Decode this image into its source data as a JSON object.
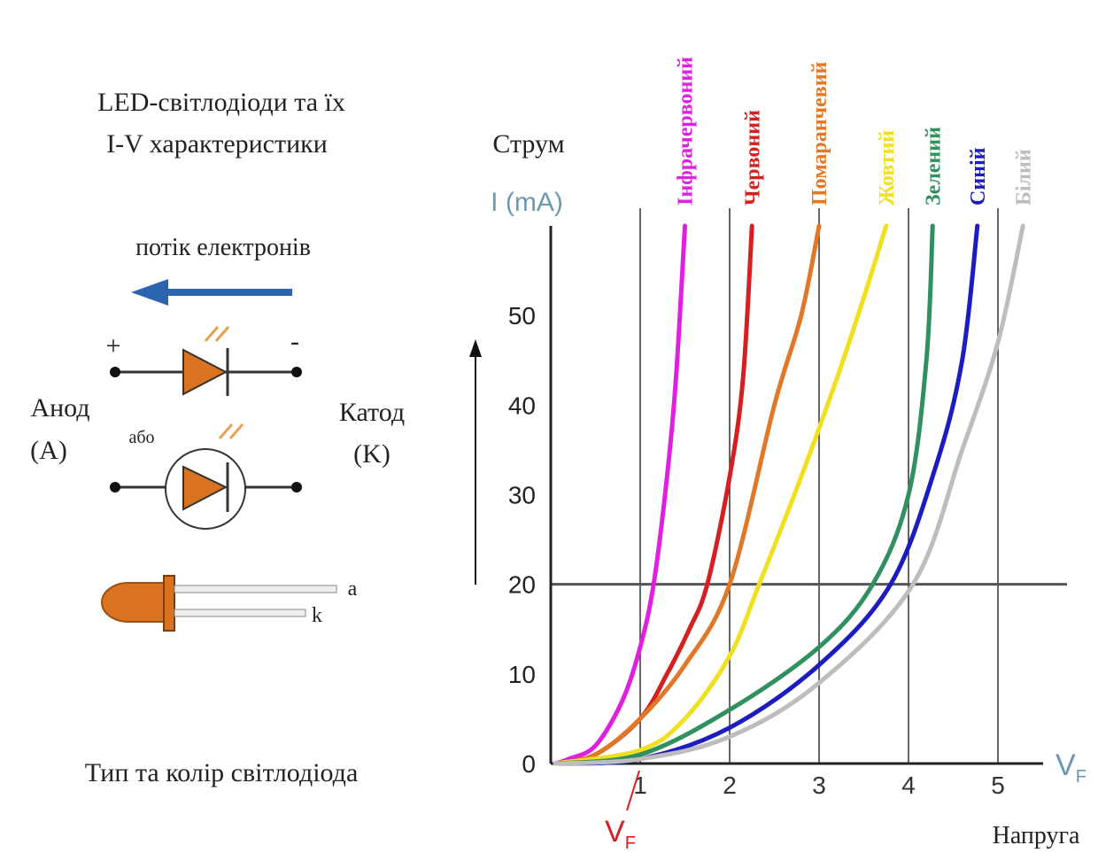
{
  "chart_data": {
    "type": "line",
    "y_title": "Струм",
    "ylabel": "I (mA)",
    "xlabel": {
      "main": "V",
      "sub": "F"
    },
    "x_title": "Напруга",
    "annotation": {
      "main": "V",
      "sub": "F"
    },
    "xlim": [
      0,
      5.5
    ],
    "ylim": [
      0,
      60
    ],
    "xticks": [
      1,
      2,
      3,
      4,
      5
    ],
    "yticks": [
      0,
      10,
      20,
      30,
      40,
      50
    ],
    "reference_line_y": 20,
    "series": [
      {
        "name": "Інфрачервоний",
        "color": "#e020e0",
        "x": [
          0.05,
          0.2,
          0.5,
          0.8,
          1.0,
          1.15,
          1.3,
          1.4,
          1.5
        ],
        "values": [
          0,
          0.5,
          2,
          7,
          13,
          20,
          32,
          43,
          60
        ]
      },
      {
        "name": "Червоний",
        "color": "#d42020",
        "x": [
          0.05,
          0.5,
          1.0,
          1.3,
          1.55,
          1.75,
          2.0,
          2.15,
          2.25
        ],
        "values": [
          0,
          1,
          5,
          10,
          15,
          20,
          32,
          43,
          60
        ]
      },
      {
        "name": "Помаранчевий",
        "color": "#e07828",
        "x": [
          0.05,
          0.5,
          1.0,
          1.5,
          2.0,
          2.5,
          2.8,
          3.0
        ],
        "values": [
          0,
          1,
          5,
          11,
          20,
          40,
          50,
          60
        ]
      },
      {
        "name": "Жовтий",
        "color": "#f0e020",
        "x": [
          0.05,
          1.0,
          1.5,
          2.0,
          2.33,
          2.8,
          3.2,
          3.5,
          3.75
        ],
        "values": [
          0,
          1.5,
          5,
          12,
          20,
          32,
          43,
          52,
          60
        ]
      },
      {
        "name": "Зелений",
        "color": "#309060",
        "x": [
          0.05,
          1.0,
          2.0,
          3.0,
          3.6,
          4.0,
          4.2,
          4.27
        ],
        "values": [
          0,
          1,
          6,
          13,
          20,
          30,
          45,
          60
        ]
      },
      {
        "name": "Синій",
        "color": "#1c1cc0",
        "x": [
          0.05,
          1.0,
          2.0,
          3.0,
          3.8,
          4.3,
          4.6,
          4.77
        ],
        "values": [
          0,
          0.5,
          4,
          11,
          20,
          33,
          45,
          60
        ]
      },
      {
        "name": "Білий",
        "color": "#bdbdbd",
        "x": [
          0.05,
          1.0,
          2.0,
          3.0,
          4.05,
          4.6,
          5.0,
          5.28
        ],
        "values": [
          0,
          0.5,
          3,
          9,
          20,
          35,
          47,
          60
        ]
      }
    ]
  },
  "diagram": {
    "title_line1": "LED-світлодіоди та їх",
    "title_line2": "I-V характеристики",
    "flow": "потік електронів",
    "plus": "+",
    "minus": "-",
    "anode": "Анод",
    "anode_short": "(A)",
    "or": "або",
    "cathode": "Катод",
    "cathode_short": "(K)",
    "lead_a": "a",
    "lead_k": "k",
    "caption": "Тип та колір світлодіода"
  }
}
